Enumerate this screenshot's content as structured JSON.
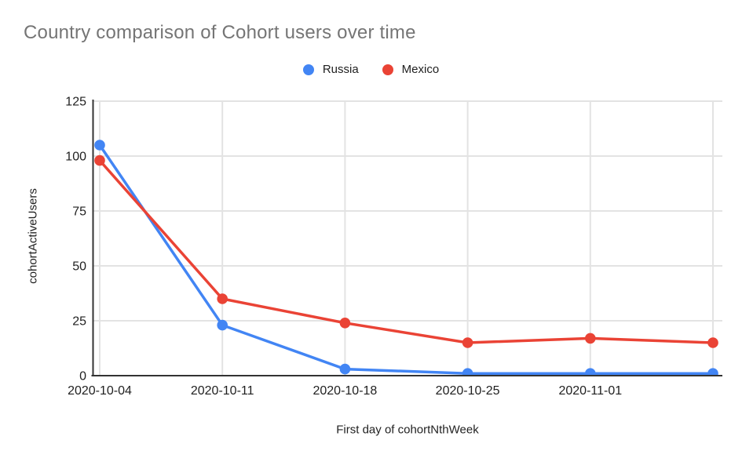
{
  "title": "Country comparison of Cohort users over time",
  "legend": {
    "items": [
      {
        "label": "Russia",
        "color": "#4285f4"
      },
      {
        "label": "Mexico",
        "color": "#ea4335"
      }
    ]
  },
  "chart_data": {
    "type": "line",
    "title": "Country comparison of Cohort users over time",
    "xlabel": "First day of cohortNthWeek",
    "ylabel": "cohortActiveUsers",
    "categories": [
      "2020-10-04",
      "2020-10-11",
      "2020-10-18",
      "2020-10-25",
      "2020-11-01",
      ""
    ],
    "series": [
      {
        "name": "Russia",
        "color": "#4285f4",
        "values": [
          105,
          23,
          3,
          1,
          1,
          1
        ]
      },
      {
        "name": "Mexico",
        "color": "#ea4335",
        "values": [
          98,
          35,
          24,
          15,
          17,
          15
        ]
      }
    ],
    "y_ticks": [
      0,
      25,
      50,
      75,
      100,
      125
    ],
    "ylim": [
      0,
      125
    ],
    "grid": true,
    "legend_position": "top",
    "marker": "circle",
    "colors": {
      "gridline": "#e3e3e3",
      "axis_line": "#333333",
      "tick_text": "#1f1f1f",
      "title_text": "#757575"
    }
  }
}
